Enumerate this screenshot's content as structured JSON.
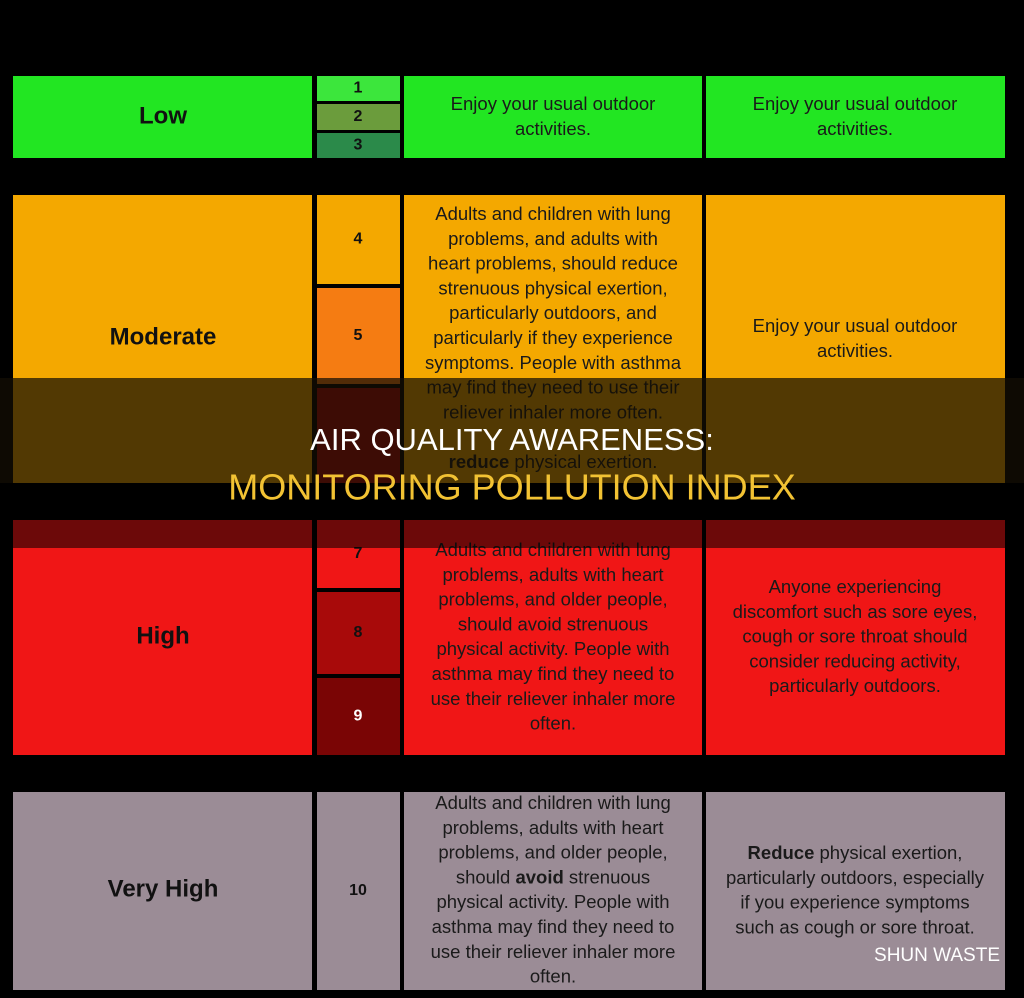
{
  "title": {
    "line1": "AIR QUALITY AWARENESS:",
    "line2": "MONITORING POLLUTION INDEX"
  },
  "watermark": "SHUN WASTE",
  "bands": [
    {
      "label": "Low",
      "indices": [
        "1",
        "2",
        "3"
      ],
      "at_risk": [
        [
          "Enjoy your usual outdoor"
        ],
        [
          "activities."
        ]
      ],
      "general": [
        [
          "Enjoy your usual outdoor"
        ],
        [
          "activities."
        ]
      ]
    },
    {
      "label": "Moderate",
      "indices": [
        "4",
        "5"
      ],
      "at_risk": [
        [
          "Adults and children with lung"
        ],
        [
          "problems, and adults with"
        ],
        [
          "heart problems, should reduce"
        ],
        [
          "strenuous physical exertion,"
        ],
        [
          "particularly outdoors, and"
        ],
        [
          "particularly if they experience"
        ],
        [
          "symptoms. People with asthma"
        ],
        [
          "may find they need to use their"
        ],
        [
          "reliever inhaler more often."
        ],
        [
          ""
        ],
        [
          {
            "text": "reduce",
            "bold": true
          },
          " physical exertion."
        ]
      ],
      "general": [
        [
          "Enjoy your usual outdoor"
        ],
        [
          "activities."
        ]
      ]
    },
    {
      "label": "High",
      "indices": [
        "7",
        "8",
        "9"
      ],
      "at_risk": [
        [
          "Adults and children with lung"
        ],
        [
          "problems, adults with heart"
        ],
        [
          "problems, and older people,"
        ],
        [
          "should avoid strenuous"
        ],
        [
          "physical activity. People with"
        ],
        [
          "asthma may find they need to"
        ],
        [
          "use their reliever inhaler more"
        ],
        [
          "often."
        ]
      ],
      "general": [
        [
          "Anyone experiencing"
        ],
        [
          "discomfort such as sore eyes,"
        ],
        [
          "cough or sore throat should"
        ],
        [
          "consider reducing activity,"
        ],
        [
          "particularly outdoors."
        ]
      ]
    },
    {
      "label": "Very High",
      "indices": [
        "10"
      ],
      "at_risk": [
        [
          "Adults and children with lung"
        ],
        [
          "problems, adults with heart"
        ],
        [
          "problems, and older people,"
        ],
        [
          "should ",
          {
            "text": "avoid",
            "bold": true
          },
          " strenuous"
        ],
        [
          "physical activity. People with"
        ],
        [
          "asthma may find they need to"
        ],
        [
          "use their reliever inhaler more"
        ],
        [
          "often."
        ]
      ],
      "general": [
        [
          {
            "text": "Reduce",
            "bold": true
          },
          " physical exertion,"
        ],
        [
          "particularly outdoors, especially"
        ],
        [
          "if you experience symptoms"
        ],
        [
          "such as cough or sore throat."
        ]
      ]
    }
  ]
}
